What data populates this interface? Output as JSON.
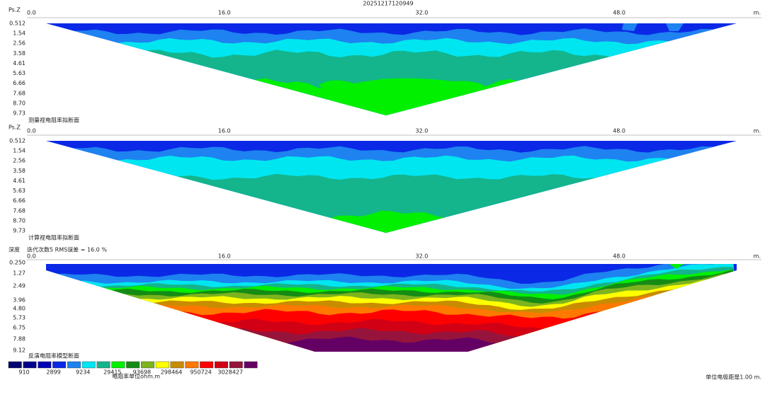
{
  "title": "20251217120949",
  "panels": [
    {
      "y_axis_label": "Ps.Z",
      "x_ticks": [
        "0.0",
        "16.0",
        "32.0",
        "48.0"
      ],
      "x_unit": "m.",
      "depth_ticks": [
        "0.512",
        "1.54",
        "2.56",
        "3.58",
        "4.61",
        "5.63",
        "6.66",
        "7.68",
        "8.70",
        "9.73"
      ],
      "caption": "测量视电阻率拟断面"
    },
    {
      "y_axis_label": "Ps.Z",
      "x_ticks": [
        "0.0",
        "16.0",
        "32.0",
        "48.0"
      ],
      "x_unit": "m.",
      "depth_ticks": [
        "0.512",
        "1.54",
        "2.56",
        "3.58",
        "4.61",
        "5.63",
        "6.66",
        "7.68",
        "8.70",
        "9.73"
      ],
      "caption": "计算视电阻率拟断面"
    },
    {
      "y_axis_label": "深度",
      "iteration_info": "迭代次数5 RMS误差 = 16.0 %",
      "x_ticks": [
        "0.0",
        "16.0",
        "32.0",
        "48.0"
      ],
      "x_unit": "m.",
      "depth_ticks": [
        "0.250",
        "1.27",
        "2.49",
        "3.96",
        "4.80",
        "5.73",
        "6.75",
        "7.88",
        "9.12"
      ],
      "caption": "反演电阻率模型断面"
    }
  ],
  "legend": {
    "colors": [
      "#00006e",
      "#00008c",
      "#0000b4",
      "#0a28e6",
      "#1e82f0",
      "#00e6f0",
      "#14b48c",
      "#00f000",
      "#148c14",
      "#7db41e",
      "#ffff00",
      "#c88c00",
      "#ff7800",
      "#ff0000",
      "#d20014",
      "#96143c",
      "#640064"
    ],
    "labels": [
      "910",
      "2899",
      "9234",
      "29415",
      "93698",
      "298464",
      "950724",
      "3028427"
    ],
    "unit": "电阻率单位ohm.m"
  },
  "footer": "单位电极距是1.00 m."
}
